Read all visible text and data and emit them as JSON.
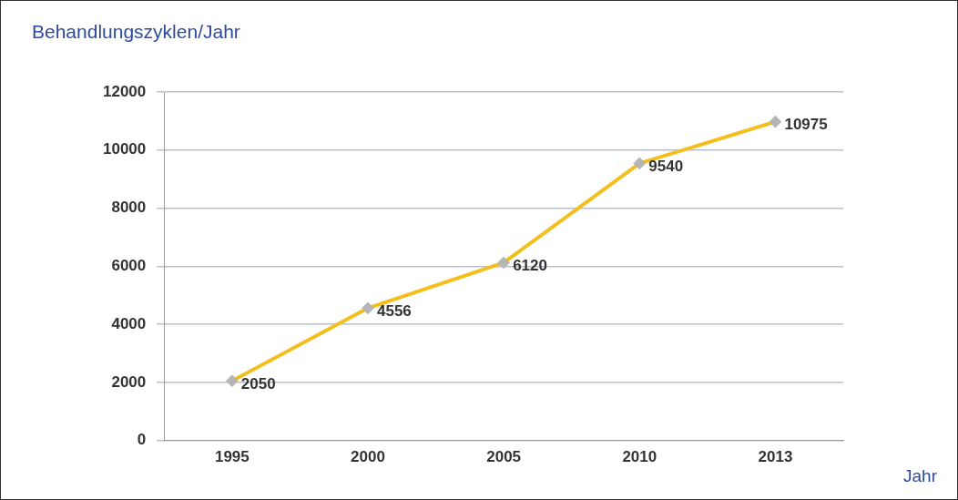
{
  "chart_data": {
    "type": "line",
    "title": "Behandlungszyklen/Jahr",
    "xlabel": "Jahr",
    "categories": [
      "1995",
      "2000",
      "2005",
      "2010",
      "2013"
    ],
    "series": [
      {
        "color": "#f2bf1f",
        "values": [
          2050,
          4556,
          6120,
          9540,
          10975
        ]
      }
    ],
    "ylim": [
      0,
      12000
    ],
    "yticks": [
      0,
      2000,
      4000,
      6000,
      8000,
      10000,
      12000
    ],
    "grid": "y",
    "legend": false,
    "marker": "diamond",
    "line_style": "solid",
    "data_labels": true
  }
}
